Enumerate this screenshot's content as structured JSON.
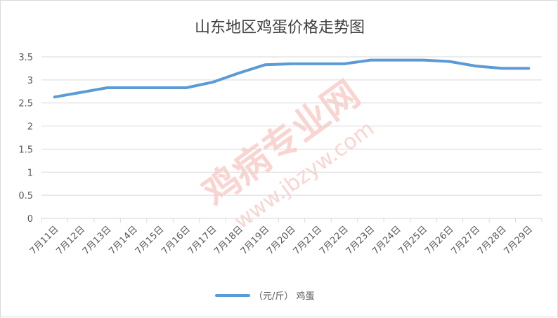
{
  "chart_data": {
    "type": "line",
    "title": "山东地区鸡蛋价格走势图",
    "categories": [
      "7月11日",
      "7月12日",
      "7月13日",
      "7月14日",
      "7月15日",
      "7月16日",
      "7月17日",
      "7月18日",
      "7月19日",
      "7月20日",
      "7月21日",
      "7月22日",
      "7月23日",
      "7月24日",
      "7月25日",
      "7月26日",
      "7月27日",
      "7月28日",
      "7月29日"
    ],
    "series": [
      {
        "name": "（元/斤） 鸡蛋",
        "values": [
          2.63,
          2.73,
          2.83,
          2.83,
          2.83,
          2.83,
          2.95,
          3.15,
          3.33,
          3.35,
          3.35,
          3.35,
          3.43,
          3.43,
          3.43,
          3.4,
          3.3,
          3.25,
          3.25
        ]
      }
    ],
    "yticks": [
      "0",
      "0.5",
      "1",
      "1.5",
      "2",
      "2.5",
      "3",
      "3.5"
    ],
    "ylim": [
      0,
      3.5
    ],
    "grid": true,
    "legend_position": "bottom",
    "line_color": "#5b9bd5"
  },
  "watermark": {
    "text": "鸡病专业网",
    "url": "www.jbzyw.com",
    "color": "#e8412e"
  }
}
